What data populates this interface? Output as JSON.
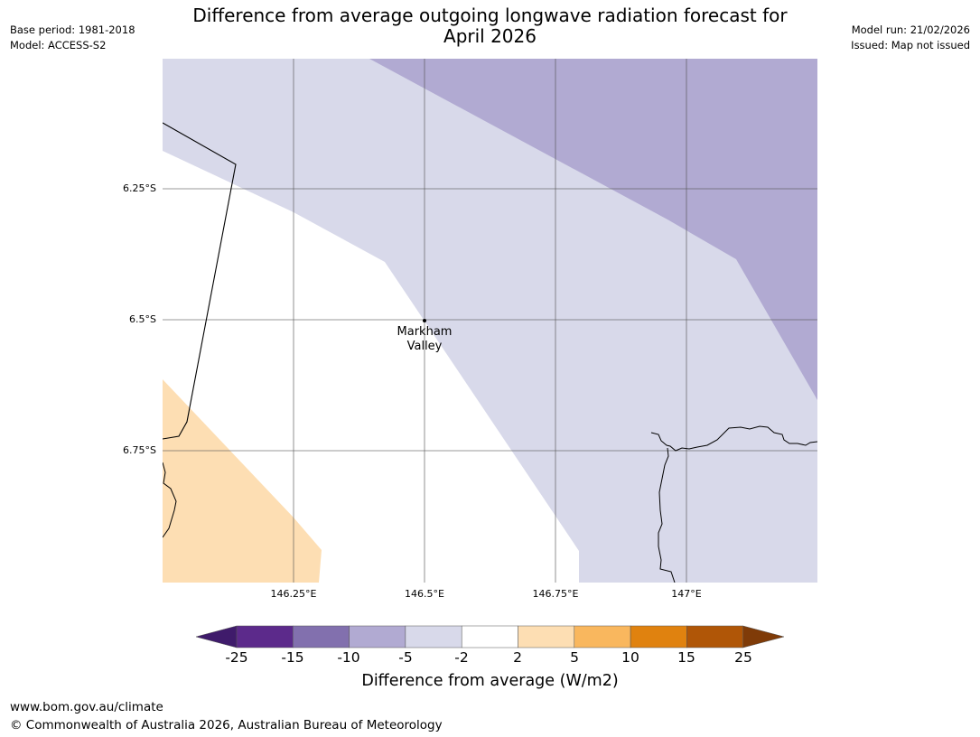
{
  "header": {
    "title_line1": "Difference from average outgoing longwave radiation forecast for",
    "title_line2": "April 2026",
    "base_period": "Base period: 1981-2018",
    "model": "Model: ACCESS-S2",
    "model_run": "Model run: 21/02/2026",
    "issued": "Issued: Map not issued"
  },
  "map": {
    "lat_labels": [
      "6.25°S",
      "6.5°S",
      "6.75°S"
    ],
    "lon_labels": [
      "146.25°E",
      "146.5°E",
      "146.75°E",
      "147°E"
    ],
    "place": {
      "line1": "Markham",
      "line2": "Valley"
    },
    "region_colors": {
      "strong_negative": "#b1aad2",
      "weak_negative": "#d8d9ea",
      "neutral": "#ffffff",
      "weak_positive": "#fddeb3"
    }
  },
  "colorbar": {
    "title": "Difference from average (W/m2)",
    "ticks": [
      "-25",
      "-15",
      "-10",
      "-5",
      "-2",
      "2",
      "5",
      "10",
      "15",
      "25"
    ],
    "colors": [
      "#3f1b6b",
      "#5c2a8b",
      "#8270ae",
      "#b1aad2",
      "#d8d9ea",
      "#ffffff",
      "#fddeb3",
      "#f9b75e",
      "#e0820f",
      "#b05607",
      "#7f3b08"
    ]
  },
  "footer": {
    "url": "www.bom.gov.au/climate",
    "copyright": "© Commonwealth of Australia 2026, Australian Bureau of Meteorology"
  }
}
